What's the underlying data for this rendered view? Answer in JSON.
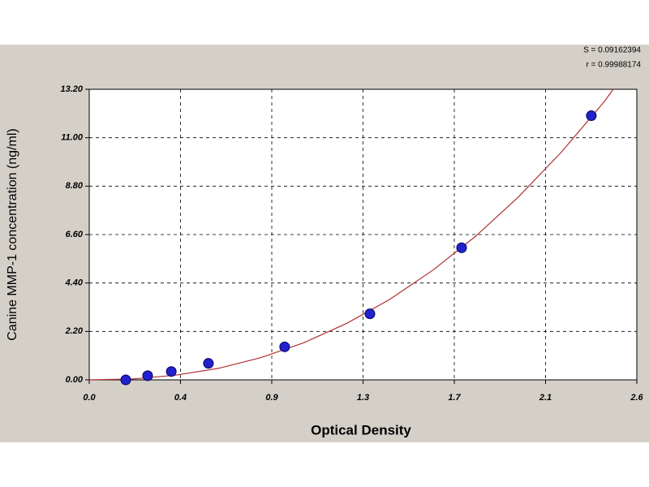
{
  "chart_data": {
    "type": "scatter",
    "x_label": "Optical Density",
    "y_label": "Canine MMP-1 concentration (ng/ml)",
    "annotations": [
      "S = 0.09162394",
      "r = 0.99988174"
    ],
    "x": [
      0.17,
      0.272,
      0.382,
      0.555,
      0.91,
      1.307,
      1.734,
      2.338
    ],
    "values": [
      0,
      0.19,
      0.38,
      0.75,
      1.5,
      3,
      6,
      12
    ],
    "color": "#2222cc",
    "fit": {
      "color": "#b03030",
      "x": [
        0,
        0.2,
        0.4,
        0.6,
        0.8,
        1.0,
        1.2,
        1.4,
        1.6,
        1.8,
        2.0,
        2.2,
        2.4,
        2.44
      ],
      "values": [
        0,
        0.04,
        0.21,
        0.52,
        1.01,
        1.69,
        2.57,
        3.66,
        4.98,
        6.53,
        8.32,
        10.36,
        12.66,
        13.2
      ]
    },
    "xlim": [
      0,
      2.55
    ],
    "xticks": [
      {
        "value": 0,
        "label": "0.0"
      },
      {
        "value": 0.425,
        "label": "0.4"
      },
      {
        "value": 0.85,
        "label": "0.9"
      },
      {
        "value": 1.275,
        "label": "1.3"
      },
      1.7,
      {
        "value": 2.125,
        "label": "2.1"
      },
      {
        "value": 2.55,
        "label": "2.6"
      }
    ],
    "ylim": [
      0,
      13.2
    ],
    "yticks": [
      {
        "value": 0,
        "label": "0.00"
      },
      {
        "value": 2.2,
        "label": "2.20"
      },
      {
        "value": 4.4,
        "label": "4.40"
      },
      {
        "value": 6.6,
        "label": "6.60"
      },
      {
        "value": 8.8,
        "label": "8.80"
      },
      {
        "value": 11,
        "label": "11.00"
      },
      {
        "value": 13.2,
        "label": "13.20"
      }
    ],
    "grid": true
  }
}
